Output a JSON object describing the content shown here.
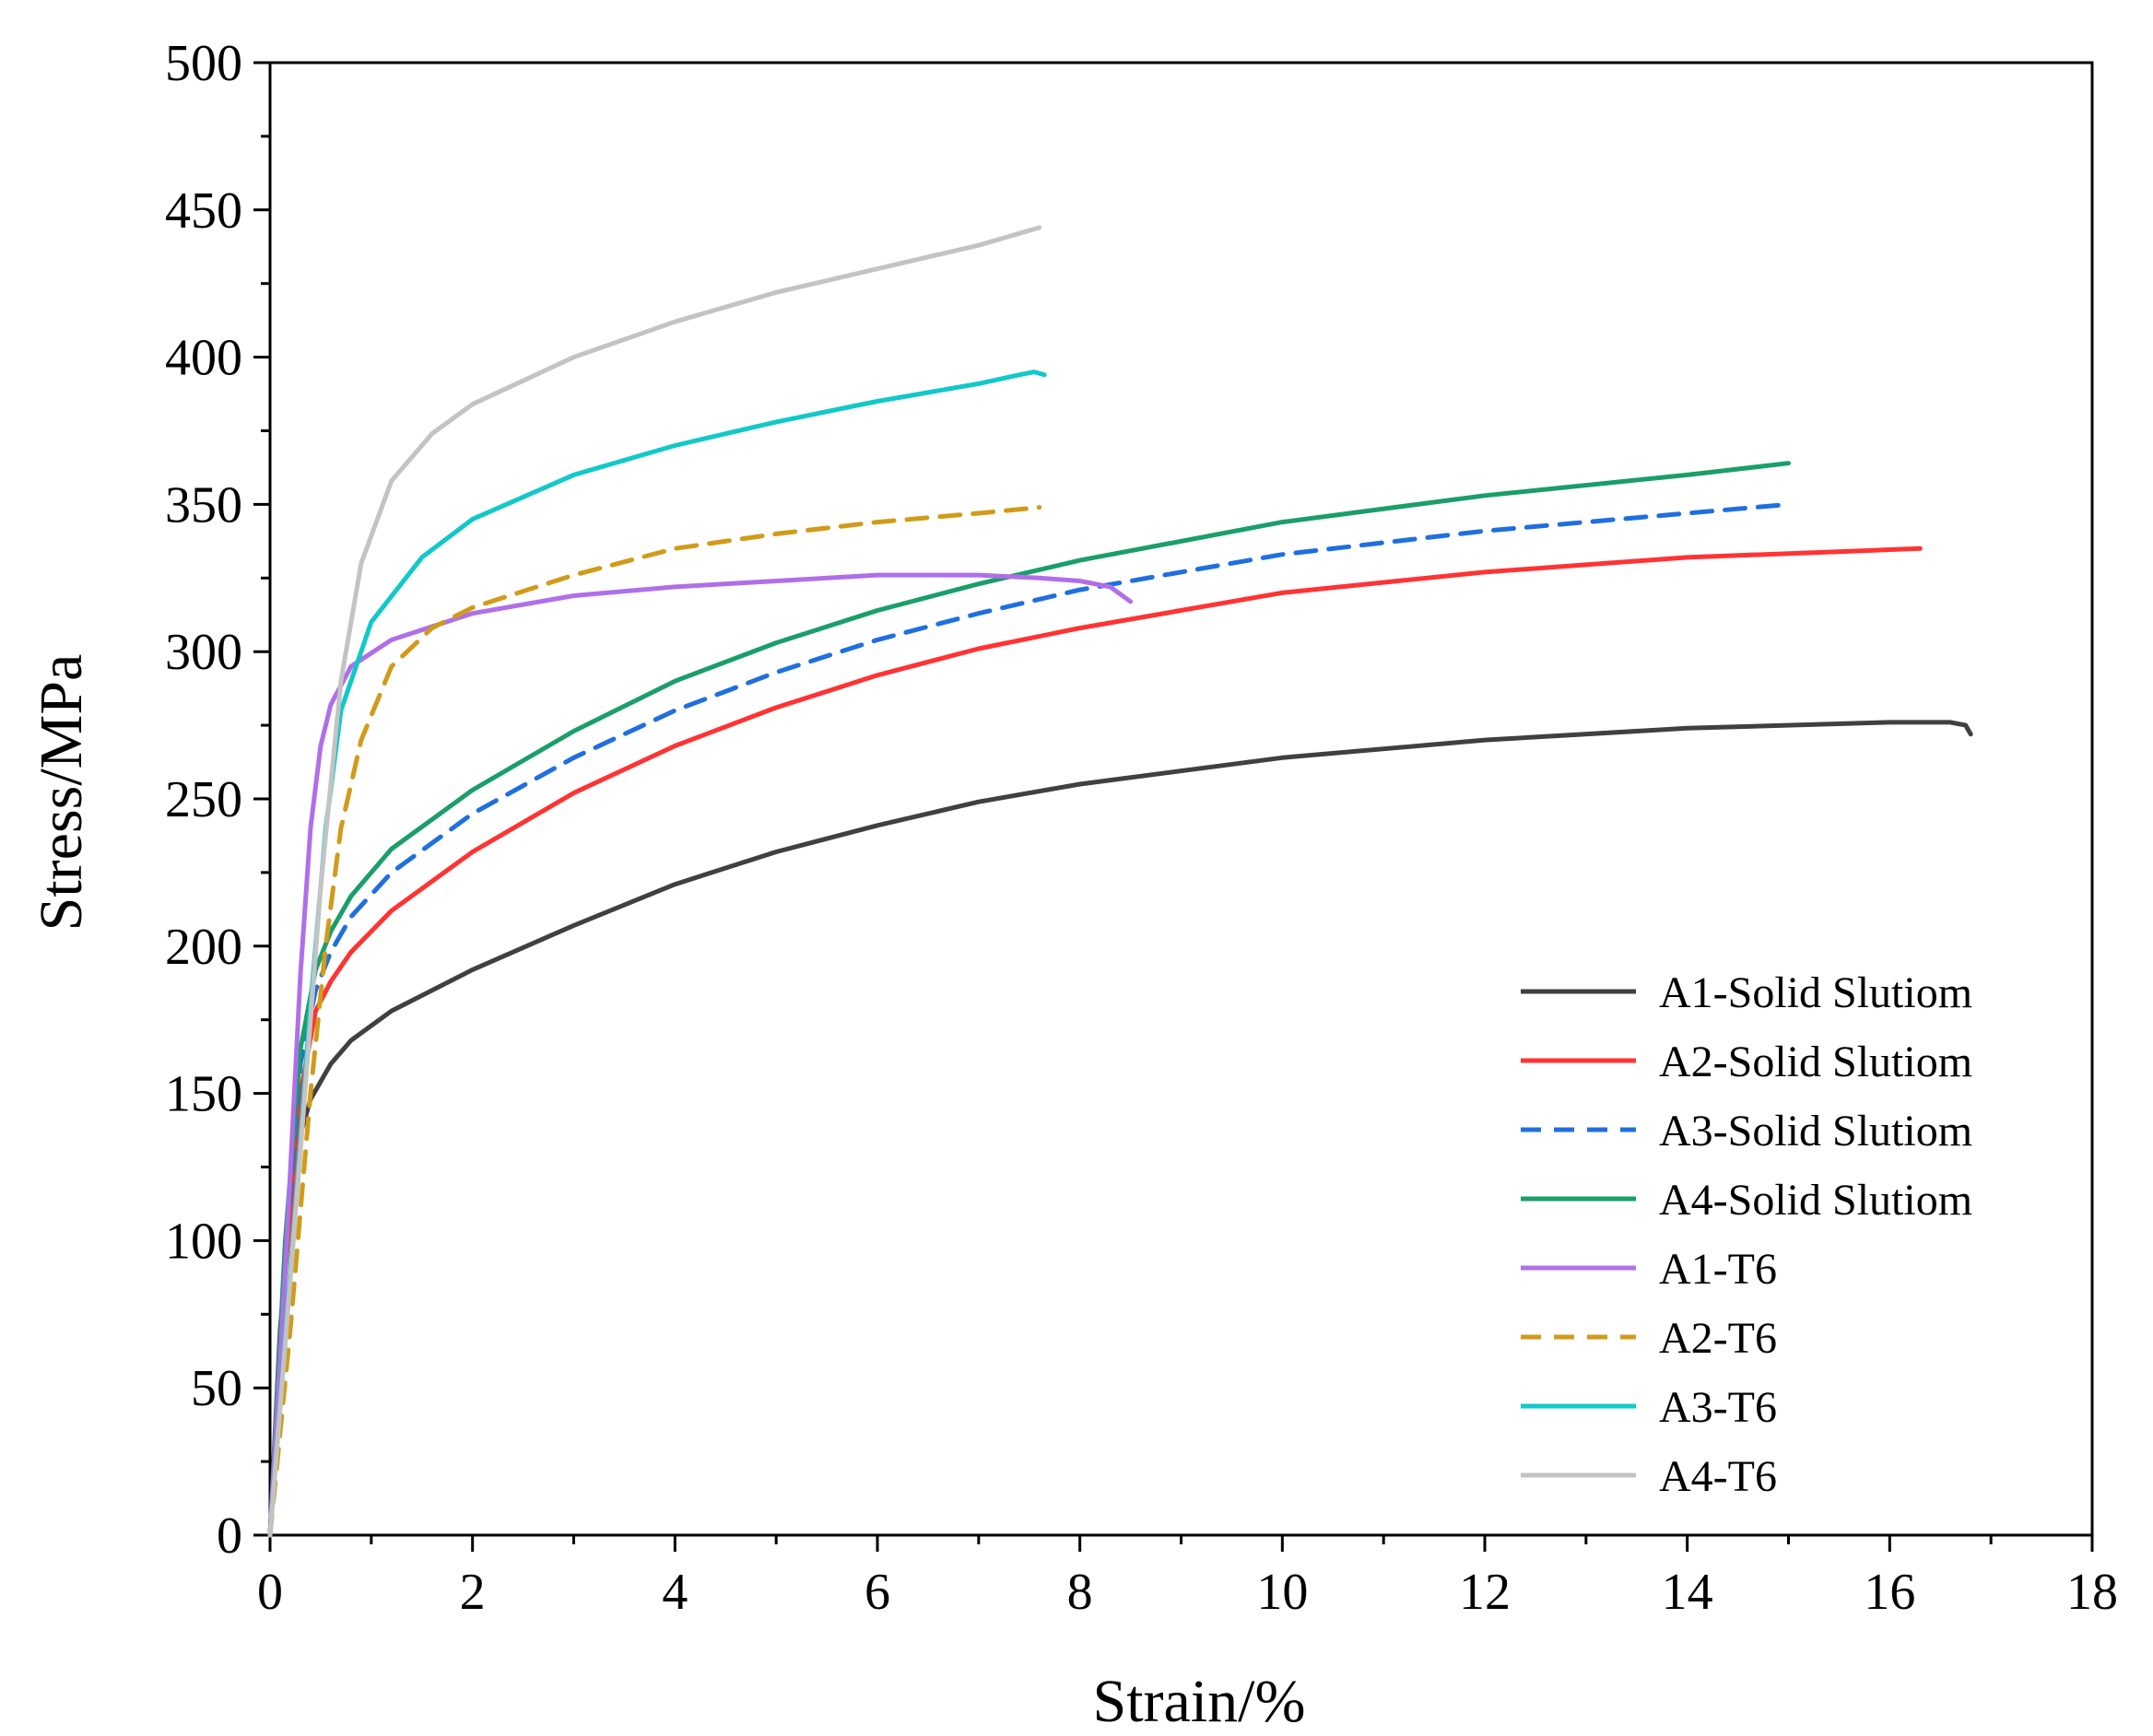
{
  "chart_data": {
    "type": "line",
    "title": "",
    "xlabel": "Strain/%",
    "ylabel": "Stress/MPa",
    "xlim": [
      0,
      18
    ],
    "ylim": [
      0,
      500
    ],
    "xticks": [
      0,
      2,
      4,
      6,
      8,
      10,
      12,
      14,
      16,
      18
    ],
    "yticks": [
      0,
      50,
      100,
      150,
      200,
      250,
      300,
      350,
      400,
      450,
      500
    ],
    "grid": false,
    "legend_position": "bottom-right",
    "series": [
      {
        "name": "A1-Solid Slutiom",
        "color": "#404040",
        "dash": "solid",
        "points": [
          [
            0,
            0
          ],
          [
            0.1,
            70
          ],
          [
            0.25,
            130
          ],
          [
            0.4,
            148
          ],
          [
            0.6,
            160
          ],
          [
            0.8,
            168
          ],
          [
            1.2,
            178
          ],
          [
            2,
            192
          ],
          [
            3,
            207
          ],
          [
            4,
            221
          ],
          [
            5,
            232
          ],
          [
            6,
            241
          ],
          [
            7,
            249
          ],
          [
            8,
            255
          ],
          [
            10,
            264
          ],
          [
            12,
            270
          ],
          [
            14,
            274
          ],
          [
            16,
            276
          ],
          [
            16.6,
            276
          ],
          [
            16.75,
            275
          ],
          [
            16.8,
            272
          ]
        ]
      },
      {
        "name": "A2-Solid Slutiom",
        "color": "#ff3333",
        "dash": "solid",
        "points": [
          [
            0,
            0
          ],
          [
            0.15,
            90
          ],
          [
            0.3,
            150
          ],
          [
            0.45,
            178
          ],
          [
            0.6,
            188
          ],
          [
            0.8,
            198
          ],
          [
            1.2,
            212
          ],
          [
            2,
            232
          ],
          [
            3,
            252
          ],
          [
            4,
            268
          ],
          [
            5,
            281
          ],
          [
            6,
            292
          ],
          [
            7,
            301
          ],
          [
            8,
            308
          ],
          [
            10,
            320
          ],
          [
            12,
            327
          ],
          [
            14,
            332
          ],
          [
            16.3,
            335
          ]
        ]
      },
      {
        "name": "A3-Solid Slutiom",
        "color": "#1f6fe0",
        "dash": "dashed",
        "points": [
          [
            0,
            0
          ],
          [
            0.15,
            95
          ],
          [
            0.3,
            160
          ],
          [
            0.45,
            185
          ],
          [
            0.6,
            198
          ],
          [
            0.8,
            210
          ],
          [
            1.2,
            225
          ],
          [
            2,
            245
          ],
          [
            3,
            264
          ],
          [
            4,
            280
          ],
          [
            5,
            293
          ],
          [
            6,
            304
          ],
          [
            7,
            313
          ],
          [
            8,
            321
          ],
          [
            10,
            333
          ],
          [
            12,
            341
          ],
          [
            14,
            347
          ],
          [
            15,
            350
          ]
        ]
      },
      {
        "name": "A4-Solid Slutiom",
        "color": "#1a9e6a",
        "dash": "solid",
        "points": [
          [
            0,
            0
          ],
          [
            0.15,
            100
          ],
          [
            0.3,
            165
          ],
          [
            0.45,
            192
          ],
          [
            0.6,
            205
          ],
          [
            0.8,
            217
          ],
          [
            1.2,
            233
          ],
          [
            2,
            253
          ],
          [
            3,
            273
          ],
          [
            4,
            290
          ],
          [
            5,
            303
          ],
          [
            6,
            314
          ],
          [
            7,
            323
          ],
          [
            8,
            331
          ],
          [
            10,
            344
          ],
          [
            12,
            353
          ],
          [
            14,
            360
          ],
          [
            15,
            364
          ]
        ]
      },
      {
        "name": "A1-T6",
        "color": "#b06fe8",
        "dash": "solid",
        "points": [
          [
            0,
            0
          ],
          [
            0.15,
            90
          ],
          [
            0.3,
            190
          ],
          [
            0.4,
            240
          ],
          [
            0.5,
            268
          ],
          [
            0.6,
            282
          ],
          [
            0.8,
            295
          ],
          [
            1.2,
            304
          ],
          [
            2,
            313
          ],
          [
            3,
            319
          ],
          [
            4,
            322
          ],
          [
            5,
            324
          ],
          [
            6,
            326
          ],
          [
            7,
            326
          ],
          [
            7.6,
            325
          ],
          [
            8.0,
            324
          ],
          [
            8.3,
            322
          ],
          [
            8.5,
            317
          ]
        ]
      },
      {
        "name": "A2-T6",
        "color": "#d19b1a",
        "dash": "dashed",
        "points": [
          [
            0,
            0
          ],
          [
            0.2,
            70
          ],
          [
            0.4,
            150
          ],
          [
            0.55,
            200
          ],
          [
            0.7,
            240
          ],
          [
            0.9,
            270
          ],
          [
            1.2,
            295
          ],
          [
            1.6,
            308
          ],
          [
            2,
            315
          ],
          [
            3,
            326
          ],
          [
            4,
            335
          ],
          [
            5,
            340
          ],
          [
            6,
            344
          ],
          [
            7,
            347
          ],
          [
            7.6,
            349
          ]
        ]
      },
      {
        "name": "A3-T6",
        "color": "#12c8c8",
        "dash": "solid",
        "points": [
          [
            0,
            0
          ],
          [
            0.2,
            90
          ],
          [
            0.4,
            180
          ],
          [
            0.55,
            240
          ],
          [
            0.7,
            280
          ],
          [
            1,
            310
          ],
          [
            1.5,
            332
          ],
          [
            2,
            345
          ],
          [
            3,
            360
          ],
          [
            4,
            370
          ],
          [
            5,
            378
          ],
          [
            6,
            385
          ],
          [
            7,
            391
          ],
          [
            7.4,
            394
          ],
          [
            7.55,
            395
          ],
          [
            7.65,
            394
          ]
        ]
      },
      {
        "name": "A4-T6",
        "color": "#c3c3c3",
        "dash": "solid",
        "points": [
          [
            0,
            0
          ],
          [
            0.3,
            130
          ],
          [
            0.5,
            220
          ],
          [
            0.7,
            290
          ],
          [
            0.9,
            330
          ],
          [
            1.2,
            358
          ],
          [
            1.6,
            374
          ],
          [
            2,
            384
          ],
          [
            3,
            400
          ],
          [
            4,
            412
          ],
          [
            5,
            422
          ],
          [
            6,
            430
          ],
          [
            7,
            438
          ],
          [
            7.6,
            444
          ]
        ]
      }
    ]
  }
}
